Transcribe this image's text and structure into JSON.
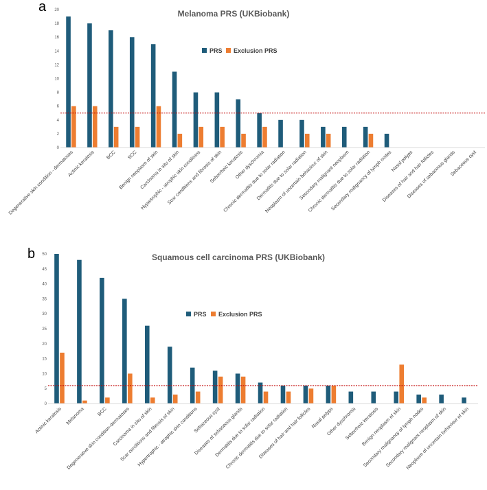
{
  "colors": {
    "prs": "#1F5C7A",
    "exclusion": "#ED7D31",
    "threshold": "#C00000",
    "axis": "#D9D9D9"
  },
  "chart_data": [
    {
      "type": "bar",
      "panel": "a",
      "title": "Melanoma PRS (UKBiobank)",
      "xlabel": "",
      "ylabel": "",
      "ylim": [
        0,
        20
      ],
      "yticks": [
        0,
        2,
        4,
        6,
        8,
        10,
        12,
        14,
        16,
        18,
        20
      ],
      "threshold": 5,
      "legend_position": "top-center",
      "categories": [
        "Degenerative skin condition - dermatoses",
        "Actinic keratosis",
        "BCC",
        "SCC",
        "Benign neoplasm of skin",
        "Carcinoma in situ of skin",
        "Hypertrophic - atrophic skin conditions",
        "Scar conditions and fibrosis of skin",
        "Seborrheic keratosis",
        "Other dyschromia",
        "Chronic dermatitis due to solar radiation",
        "Dermatitis due to solar radiation",
        "Neoplasm of uncertain behaviour of skin",
        "Secondary malignant neoplasm",
        "Chronic dermatitis due to solar radiation",
        "Secondary malignancy of lymph nodes",
        "Nasal polyps",
        "Diseases of hair and hair follicles",
        "Diseases of sebaceous glands",
        "Sebaceous cyst"
      ],
      "series": [
        {
          "name": "PRS",
          "values": [
            19,
            18,
            17,
            16,
            15,
            11,
            8,
            8,
            7,
            5,
            4,
            4,
            3,
            3,
            3,
            2,
            0,
            0,
            0,
            0
          ]
        },
        {
          "name": "Exclusion PRS",
          "values": [
            6,
            6,
            3,
            3,
            6,
            2,
            3,
            3,
            2,
            3,
            0,
            2,
            2,
            0,
            2,
            0,
            0,
            0,
            0,
            0
          ]
        }
      ]
    },
    {
      "type": "bar",
      "panel": "b",
      "title": "Squamous cell carcinoma PRS (UKBiobank)",
      "xlabel": "",
      "ylabel": "",
      "ylim": [
        0,
        50
      ],
      "yticks": [
        0,
        5,
        10,
        15,
        20,
        25,
        30,
        35,
        40,
        45,
        50
      ],
      "threshold": 6,
      "legend_position": "top-center",
      "categories": [
        "Actinic keratosis",
        "Melanoma",
        "BCC",
        "Degenerative skin condition-dermatoses",
        "Carcinoma in situ of skin",
        "Scar conditions and fibrosis of skin",
        "Hypertrophic - atrophic skin conditions",
        "Sebaceous cyst",
        "Diseases of sebaceous glands",
        "Dermatitis due to solar radiation",
        "Chronic dermatitis due to solar radiation",
        "Diseases of hair and hair follicles",
        "Nasal polyps",
        "Other dyschromia",
        "Seborrheic keratosis",
        "Benign neoplasm of skin",
        "Secondary malignancy of lymph nodes",
        "Secondary malignant neoplasm of skin",
        "Neoplasm of uncertain behaviour of skin"
      ],
      "series": [
        {
          "name": "PRS",
          "values": [
            50,
            48,
            42,
            35,
            26,
            19,
            12,
            11,
            10,
            7,
            6,
            6,
            6,
            4,
            4,
            4,
            3,
            3,
            2
          ]
        },
        {
          "name": "Exclusion PRS",
          "values": [
            17,
            1,
            2,
            10,
            2,
            3,
            4,
            9,
            9,
            4,
            4,
            5,
            6,
            0,
            0,
            13,
            2,
            0,
            0
          ]
        }
      ]
    }
  ]
}
